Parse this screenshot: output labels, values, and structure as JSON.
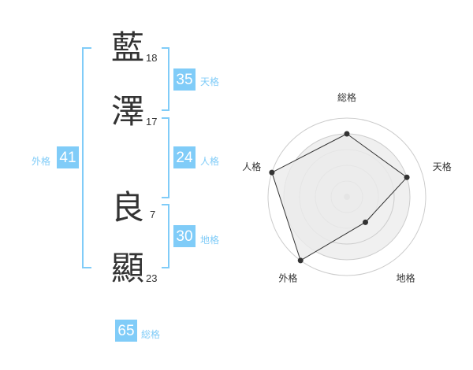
{
  "characters": [
    {
      "char": "藍",
      "strokes": "18"
    },
    {
      "char": "澤",
      "strokes": "17"
    },
    {
      "char": "良",
      "strokes": "7"
    },
    {
      "char": "顯",
      "strokes": "23"
    }
  ],
  "fortunes": {
    "tenkaku": {
      "label": "天格",
      "value": "35"
    },
    "jinkaku": {
      "label": "人格",
      "value": "24"
    },
    "chikaku": {
      "label": "地格",
      "value": "30"
    },
    "gaikaku": {
      "label": "外格",
      "value": "41"
    },
    "soukaku": {
      "label": "総格",
      "value": "65"
    }
  },
  "accent_color": "#80ccf8",
  "chart_data": {
    "type": "radar",
    "axes": [
      "総格",
      "天格",
      "地格",
      "外格",
      "人格"
    ],
    "values": [
      4,
      4,
      2,
      5,
      5
    ],
    "max": 5,
    "rings": 5
  }
}
